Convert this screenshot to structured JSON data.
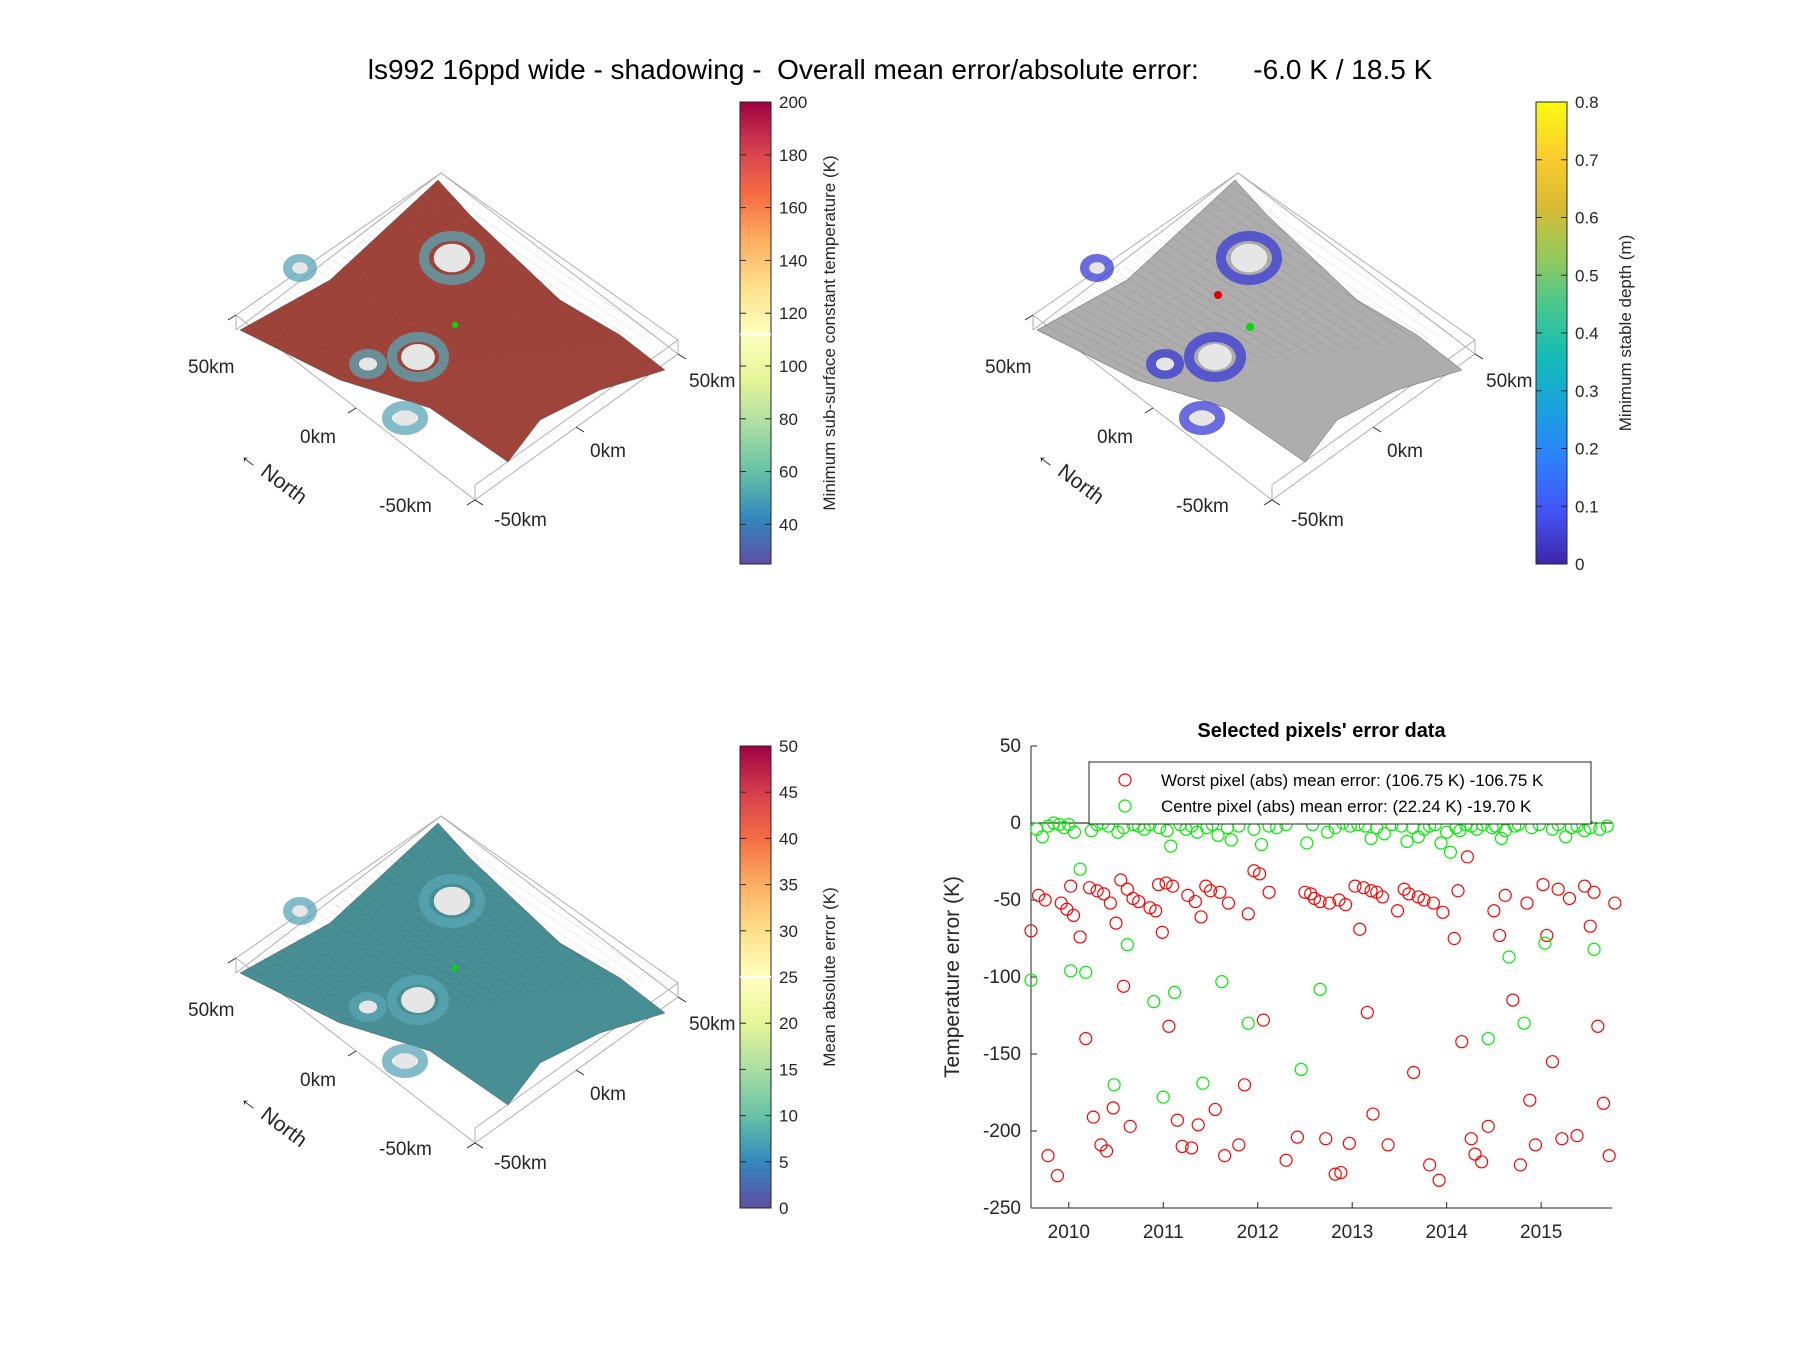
{
  "suptitle": "ls992 16ppd wide - shadowing -  Overall mean error/absolute error:       -6.0 K / 18.5 K",
  "surface_panels": [
    {
      "id": "sub-surface-temperature",
      "colorbar_label": "Minimum sub-surface constant temperature (K)",
      "colorbar_ticks": [
        "40",
        "60",
        "80",
        "100",
        "120",
        "140",
        "160",
        "180",
        "200"
      ],
      "colorbar_range": [
        25,
        200
      ],
      "colormap": "spectral",
      "colorbar_marker": 112,
      "axis_labels": {
        "x_left": "50km",
        "x_mid": "0km",
        "x_right": "-50km",
        "y_top": "50km",
        "y_mid": "0km",
        "y_bottom": "-50km"
      },
      "north_label": "North",
      "base_color": "#9a3a30"
    },
    {
      "id": "stable-depth",
      "colorbar_label": "Minimum stable depth (m)",
      "colorbar_ticks": [
        "0",
        "0.1",
        "0.2",
        "0.3",
        "0.4",
        "0.5",
        "0.6",
        "0.7",
        "0.8"
      ],
      "colorbar_range": [
        0,
        0.8
      ],
      "colormap": "parula",
      "axis_labels": {
        "x_left": "50km",
        "x_mid": "0km",
        "x_right": "-50km",
        "y_top": "50km",
        "y_mid": "0km",
        "y_bottom": "-50km"
      },
      "north_label": "North",
      "base_color": "#a9a9a9"
    },
    {
      "id": "mean-absolute-error",
      "colorbar_label": "Mean absolute error (K)",
      "colorbar_ticks": [
        "0",
        "5",
        "10",
        "15",
        "20",
        "25",
        "30",
        "35",
        "40",
        "45",
        "50"
      ],
      "colorbar_range": [
        0,
        50
      ],
      "colormap": "spectral",
      "colorbar_marker": 25,
      "axis_labels": {
        "x_left": "50km",
        "x_mid": "0km",
        "x_right": "-50km",
        "y_top": "50km",
        "y_mid": "0km",
        "y_bottom": "-50km"
      },
      "north_label": "North",
      "base_color": "#3e8a8f"
    }
  ],
  "chart_data": {
    "type": "scatter",
    "title": "Selected pixels' error data",
    "ylabel": "Temperature error (K)",
    "xlabel": "",
    "xlim": [
      2009.6,
      2015.75
    ],
    "ylim": [
      -250,
      50
    ],
    "x_ticks": [
      2010,
      2011,
      2012,
      2013,
      2014,
      2015
    ],
    "y_ticks": [
      50,
      0,
      -50,
      -100,
      -150,
      -200,
      -250
    ],
    "grid": false,
    "reference_line": 0,
    "legend_position": "top-right",
    "series": [
      {
        "name": "Worst pixel (abs) mean error: (106.75 K) -106.75 K",
        "color": "#ff0000",
        "marker": "open-circle",
        "points": [
          [
            2009.6,
            -70
          ],
          [
            2009.68,
            -47
          ],
          [
            2009.75,
            -50
          ],
          [
            2009.78,
            -216
          ],
          [
            2009.88,
            -229
          ],
          [
            2009.92,
            -52
          ],
          [
            2009.98,
            -56
          ],
          [
            2010.02,
            -41
          ],
          [
            2010.05,
            -60
          ],
          [
            2010.12,
            -74
          ],
          [
            2010.18,
            -140
          ],
          [
            2010.22,
            -42
          ],
          [
            2010.26,
            -191
          ],
          [
            2010.3,
            -44
          ],
          [
            2010.34,
            -209
          ],
          [
            2010.37,
            -46
          ],
          [
            2010.4,
            -213
          ],
          [
            2010.44,
            -52
          ],
          [
            2010.47,
            -185
          ],
          [
            2010.5,
            -65
          ],
          [
            2010.55,
            -37
          ],
          [
            2010.58,
            -106
          ],
          [
            2010.62,
            -43
          ],
          [
            2010.65,
            -197
          ],
          [
            2010.68,
            -49
          ],
          [
            2010.74,
            -51
          ],
          [
            2010.86,
            -55
          ],
          [
            2010.92,
            -57
          ],
          [
            2010.95,
            -40
          ],
          [
            2010.99,
            -71
          ],
          [
            2011.03,
            -39
          ],
          [
            2011.06,
            -132
          ],
          [
            2011.1,
            -41
          ],
          [
            2011.15,
            -193
          ],
          [
            2011.2,
            -210
          ],
          [
            2011.26,
            -47
          ],
          [
            2011.3,
            -211
          ],
          [
            2011.34,
            -51
          ],
          [
            2011.37,
            -196
          ],
          [
            2011.4,
            -61
          ],
          [
            2011.45,
            -41
          ],
          [
            2011.5,
            -44
          ],
          [
            2011.55,
            -186
          ],
          [
            2011.6,
            -45
          ],
          [
            2011.65,
            -216
          ],
          [
            2011.69,
            -52
          ],
          [
            2011.8,
            -209
          ],
          [
            2011.86,
            -170
          ],
          [
            2011.9,
            -59
          ],
          [
            2011.96,
            -31
          ],
          [
            2012.02,
            -33
          ],
          [
            2012.06,
            -128
          ],
          [
            2012.12,
            -45
          ],
          [
            2012.3,
            -219
          ],
          [
            2012.42,
            -204
          ],
          [
            2012.5,
            -45
          ],
          [
            2012.56,
            -46
          ],
          [
            2012.6,
            -49
          ],
          [
            2012.66,
            -51
          ],
          [
            2012.72,
            -205
          ],
          [
            2012.76,
            -52
          ],
          [
            2012.82,
            -228
          ],
          [
            2012.86,
            -50
          ],
          [
            2012.88,
            -227
          ],
          [
            2012.93,
            -53
          ],
          [
            2012.97,
            -208
          ],
          [
            2013.03,
            -41
          ],
          [
            2013.08,
            -69
          ],
          [
            2013.12,
            -42
          ],
          [
            2013.16,
            -123
          ],
          [
            2013.2,
            -44
          ],
          [
            2013.22,
            -189
          ],
          [
            2013.26,
            -45
          ],
          [
            2013.32,
            -48
          ],
          [
            2013.38,
            -209
          ],
          [
            2013.48,
            -57
          ],
          [
            2013.55,
            -43
          ],
          [
            2013.6,
            -46
          ],
          [
            2013.65,
            -162
          ],
          [
            2013.7,
            -48
          ],
          [
            2013.76,
            -50
          ],
          [
            2013.82,
            -222
          ],
          [
            2013.86,
            -52
          ],
          [
            2013.92,
            -232
          ],
          [
            2013.96,
            -58
          ],
          [
            2014.08,
            -75
          ],
          [
            2014.12,
            -44
          ],
          [
            2014.16,
            -142
          ],
          [
            2014.22,
            -22
          ],
          [
            2014.26,
            -205
          ],
          [
            2014.3,
            -215
          ],
          [
            2014.37,
            -220
          ],
          [
            2014.44,
            -197
          ],
          [
            2014.5,
            -57
          ],
          [
            2014.56,
            -73
          ],
          [
            2014.62,
            -47
          ],
          [
            2014.7,
            -115
          ],
          [
            2014.78,
            -222
          ],
          [
            2014.85,
            -52
          ],
          [
            2014.88,
            -180
          ],
          [
            2014.94,
            -209
          ],
          [
            2015.02,
            -40
          ],
          [
            2015.06,
            -73
          ],
          [
            2015.12,
            -155
          ],
          [
            2015.18,
            -43
          ],
          [
            2015.22,
            -205
          ],
          [
            2015.3,
            -49
          ],
          [
            2015.38,
            -203
          ],
          [
            2015.46,
            -41
          ],
          [
            2015.52,
            -67
          ],
          [
            2015.56,
            -45
          ],
          [
            2015.6,
            -132
          ],
          [
            2015.66,
            -182
          ],
          [
            2015.72,
            -216
          ],
          [
            2015.78,
            -52
          ]
        ]
      },
      {
        "name": "Centre pixel (abs) mean error: (22.24 K) -19.70 K",
        "color": "#00ee00",
        "marker": "open-circle",
        "points": [
          [
            2009.6,
            -102
          ],
          [
            2009.66,
            -4
          ],
          [
            2009.72,
            -9
          ],
          [
            2009.78,
            -2
          ],
          [
            2009.84,
            0
          ],
          [
            2009.9,
            -1
          ],
          [
            2009.95,
            -3
          ],
          [
            2010.0,
            -1
          ],
          [
            2010.02,
            -96
          ],
          [
            2010.06,
            -6
          ],
          [
            2010.12,
            -30
          ],
          [
            2010.18,
            -97
          ],
          [
            2010.24,
            -5
          ],
          [
            2010.3,
            -1
          ],
          [
            2010.36,
            0
          ],
          [
            2010.42,
            -2
          ],
          [
            2010.48,
            -170
          ],
          [
            2010.52,
            -6
          ],
          [
            2010.58,
            -3
          ],
          [
            2010.62,
            -79
          ],
          [
            2010.68,
            -1
          ],
          [
            2010.74,
            -2
          ],
          [
            2010.8,
            -4
          ],
          [
            2010.86,
            -1
          ],
          [
            2010.9,
            -116
          ],
          [
            2010.96,
            -3
          ],
          [
            2011.0,
            -178
          ],
          [
            2011.04,
            -5
          ],
          [
            2011.08,
            -15
          ],
          [
            2011.12,
            -110
          ],
          [
            2011.18,
            -1
          ],
          [
            2011.24,
            -4
          ],
          [
            2011.3,
            -2
          ],
          [
            2011.36,
            -6
          ],
          [
            2011.42,
            -169
          ],
          [
            2011.46,
            -3
          ],
          [
            2011.52,
            -1
          ],
          [
            2011.58,
            -8
          ],
          [
            2011.62,
            -103
          ],
          [
            2011.68,
            -3
          ],
          [
            2011.72,
            -11
          ],
          [
            2011.8,
            -2
          ],
          [
            2011.9,
            -130
          ],
          [
            2011.96,
            -4
          ],
          [
            2012.04,
            -14
          ],
          [
            2012.12,
            -2
          ],
          [
            2012.2,
            -3
          ],
          [
            2012.3,
            -1
          ],
          [
            2012.46,
            -160
          ],
          [
            2012.52,
            -13
          ],
          [
            2012.58,
            -1
          ],
          [
            2012.66,
            -108
          ],
          [
            2012.74,
            -6
          ],
          [
            2012.82,
            -3
          ],
          [
            2012.9,
            0
          ],
          [
            2012.98,
            -2
          ],
          [
            2013.06,
            -1
          ],
          [
            2013.14,
            -2
          ],
          [
            2013.2,
            -10
          ],
          [
            2013.26,
            -3
          ],
          [
            2013.34,
            -7
          ],
          [
            2013.42,
            -1
          ],
          [
            2013.52,
            -2
          ],
          [
            2013.58,
            -12
          ],
          [
            2013.64,
            -3
          ],
          [
            2013.7,
            -9
          ],
          [
            2013.76,
            -4
          ],
          [
            2013.82,
            -2
          ],
          [
            2013.88,
            -1
          ],
          [
            2013.94,
            -13
          ],
          [
            2014.0,
            -6
          ],
          [
            2014.04,
            -19
          ],
          [
            2014.1,
            -3
          ],
          [
            2014.14,
            -5
          ],
          [
            2014.2,
            -1
          ],
          [
            2014.26,
            -2
          ],
          [
            2014.32,
            -4
          ],
          [
            2014.38,
            -1
          ],
          [
            2014.44,
            -140
          ],
          [
            2014.48,
            -3
          ],
          [
            2014.52,
            -2
          ],
          [
            2014.58,
            -10
          ],
          [
            2014.62,
            -5
          ],
          [
            2014.66,
            -87
          ],
          [
            2014.72,
            -2
          ],
          [
            2014.76,
            -1
          ],
          [
            2014.82,
            -130
          ],
          [
            2014.9,
            -3
          ],
          [
            2014.98,
            -1
          ],
          [
            2015.04,
            -78
          ],
          [
            2015.12,
            -4
          ],
          [
            2015.18,
            -1
          ],
          [
            2015.26,
            -9
          ],
          [
            2015.32,
            -3
          ],
          [
            2015.38,
            -2
          ],
          [
            2015.46,
            -5
          ],
          [
            2015.52,
            -3
          ],
          [
            2015.56,
            -82
          ],
          [
            2015.62,
            -4
          ],
          [
            2015.7,
            -2
          ]
        ]
      }
    ]
  }
}
